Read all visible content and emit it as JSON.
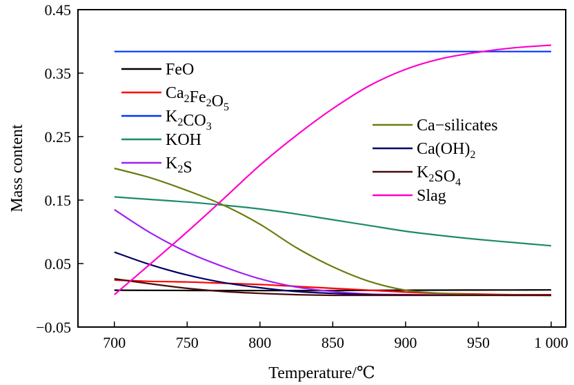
{
  "chart_data": {
    "type": "line",
    "xlabel": "Temperature/℃",
    "ylabel": "Mass content",
    "xlim": [
      675,
      1010
    ],
    "ylim": [
      -0.05,
      0.45
    ],
    "xticks": [
      700,
      750,
      800,
      850,
      900,
      950,
      1000
    ],
    "xtick_labels": [
      "700",
      "750",
      "800",
      "850",
      "900",
      "950",
      "1 000"
    ],
    "yticks": [
      -0.05,
      0.05,
      0.15,
      0.25,
      0.35,
      0.45
    ],
    "ytick_labels": [
      "−0.05",
      "0.05",
      "0.15",
      "0.25",
      "0.35",
      "0.45"
    ],
    "grid": false,
    "legend": [
      {
        "placement": "upper-left",
        "entries": [
          "FeO",
          "Ca2Fe2O5",
          "K2CO3",
          "KOH",
          "K2S"
        ]
      },
      {
        "placement": "center-right",
        "entries": [
          "Ca−silicates",
          "Ca(OH)2",
          "K2SO4",
          "Slag"
        ]
      }
    ],
    "x": [
      700,
      725,
      750,
      775,
      800,
      825,
      850,
      875,
      900,
      925,
      950,
      975,
      1000
    ],
    "series": [
      {
        "name": "FeO",
        "label": {
          "main": [
            "FeO"
          ],
          "sub": []
        },
        "color": "#000000",
        "values": [
          0.008,
          0.0078,
          0.0076,
          0.0075,
          0.0074,
          0.0074,
          0.0075,
          0.0078,
          0.008,
          0.0082,
          0.0083,
          0.0084,
          0.0085
        ]
      },
      {
        "name": "Ca2Fe2O5",
        "label": {
          "main": [
            "Ca",
            "Fe",
            "O"
          ],
          "sub": [
            "2",
            "2",
            "5"
          ]
        },
        "color": "#ff0000",
        "values": [
          0.024,
          0.022,
          0.021,
          0.019,
          0.017,
          0.014,
          0.011,
          0.008,
          0.005,
          0.003,
          0.002,
          0.001,
          0.001
        ]
      },
      {
        "name": "K2CO3",
        "label": {
          "main": [
            "K",
            "CO"
          ],
          "sub": [
            "2",
            "3"
          ]
        },
        "color": "#0033ff",
        "values": [
          0.384,
          0.384,
          0.384,
          0.384,
          0.384,
          0.384,
          0.384,
          0.384,
          0.384,
          0.384,
          0.384,
          0.384,
          0.384
        ]
      },
      {
        "name": "KOH",
        "label": {
          "main": [
            "KOH"
          ],
          "sub": []
        },
        "color": "#1b8a6b",
        "values": [
          0.155,
          0.151,
          0.147,
          0.142,
          0.136,
          0.128,
          0.119,
          0.11,
          0.101,
          0.094,
          0.088,
          0.083,
          0.078
        ]
      },
      {
        "name": "K2S",
        "label": {
          "main": [
            "K",
            "S"
          ],
          "sub": [
            "2"
          ]
        },
        "color": "#a020f0",
        "values": [
          0.135,
          0.098,
          0.068,
          0.045,
          0.026,
          0.013,
          0.006,
          0.002,
          0.001,
          0.0005,
          0.0002,
          0.0001,
          0.0
        ]
      },
      {
        "name": "Ca−silicates",
        "label": {
          "main": [
            "Ca−silicates"
          ],
          "sub": []
        },
        "color": "#6b7b0f",
        "values": [
          0.2,
          0.185,
          0.165,
          0.142,
          0.112,
          0.075,
          0.045,
          0.022,
          0.008,
          0.003,
          0.001,
          0.0005,
          0.0
        ]
      },
      {
        "name": "Ca(OH)2",
        "label": {
          "main": [
            "Ca(OH)"
          ],
          "sub": [
            "2"
          ]
        },
        "color": "#000066",
        "values": [
          0.068,
          0.048,
          0.032,
          0.02,
          0.012,
          0.006,
          0.003,
          0.001,
          0.0005,
          0.0002,
          0.0001,
          0.0,
          0.0
        ]
      },
      {
        "name": "K2SO4",
        "label": {
          "main": [
            "K",
            "SO"
          ],
          "sub": [
            "2",
            "4"
          ]
        },
        "color": "#4a0a0a",
        "values": [
          0.026,
          0.018,
          0.011,
          0.006,
          0.003,
          0.001,
          0.0,
          0.0,
          0.0,
          0.0,
          0.0,
          0.0,
          0.0
        ]
      },
      {
        "name": "Slag",
        "label": {
          "main": [
            "Slag"
          ],
          "sub": []
        },
        "color": "#ff00cc",
        "values": [
          0.001,
          0.05,
          0.1,
          0.152,
          0.205,
          0.252,
          0.294,
          0.33,
          0.356,
          0.373,
          0.383,
          0.39,
          0.394
        ]
      }
    ]
  }
}
